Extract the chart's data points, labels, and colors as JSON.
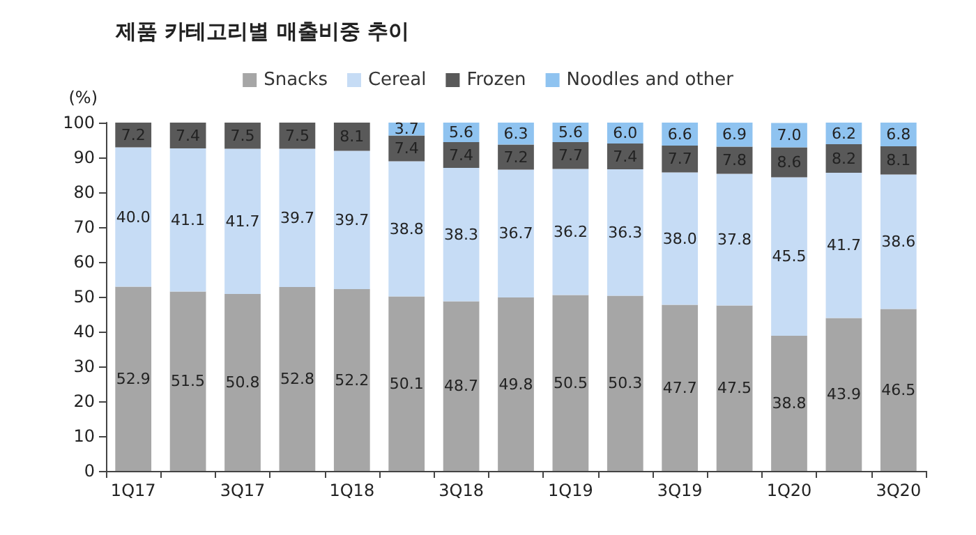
{
  "chart_data": {
    "type": "bar",
    "title": "제품 카테고리별 매출비중 추이",
    "ylabel": "(%)",
    "categories": [
      "1Q17",
      null,
      "3Q17",
      null,
      "1Q18",
      null,
      "3Q18",
      null,
      "1Q19",
      null,
      "3Q19",
      null,
      "1Q20",
      null,
      "3Q20"
    ],
    "series": [
      {
        "name": "Snacks",
        "color": "#a6a6a6",
        "values": [
          52.9,
          51.5,
          50.8,
          52.8,
          52.2,
          50.1,
          48.7,
          49.8,
          50.5,
          50.3,
          47.7,
          47.5,
          38.8,
          43.9,
          46.5
        ],
        "value_labels": [
          "52.9",
          "51.5",
          "50.8",
          "52.8",
          "52.2",
          "50.1",
          "48.7",
          "49.8",
          "50.5",
          "50.3",
          "47.7",
          "47.5",
          "38.8",
          "43.9",
          "46.5"
        ]
      },
      {
        "name": "Cereal",
        "color": "#c6dcf5",
        "values": [
          40.0,
          41.1,
          41.7,
          39.7,
          39.7,
          38.8,
          38.3,
          36.7,
          36.2,
          36.3,
          38.0,
          37.8,
          45.5,
          41.7,
          38.6
        ],
        "value_labels": [
          "40.0",
          "41.1",
          "41.7",
          "39.7",
          "39.7",
          "38.8",
          "38.3",
          "36.7",
          "36.2",
          "36.3",
          "38.0",
          "37.8",
          "45.5",
          "41.7",
          "38.6"
        ]
      },
      {
        "name": "Frozen",
        "color": "#595959",
        "values": [
          7.2,
          7.4,
          7.5,
          7.5,
          8.1,
          7.4,
          7.4,
          7.2,
          7.7,
          7.4,
          7.7,
          7.8,
          8.6,
          8.2,
          8.1
        ],
        "value_labels": [
          "7.2",
          "7.4",
          "7.5",
          "7.5",
          "8.1",
          "7.4",
          "7.4",
          "7.2",
          "7.7",
          "7.4",
          "7.7",
          "7.8",
          "8.6",
          "8.2",
          "8.1"
        ]
      },
      {
        "name": "Noodles and other",
        "color": "#8fc3f0",
        "values": [
          null,
          null,
          null,
          null,
          null,
          3.7,
          5.6,
          6.3,
          5.6,
          6.0,
          6.6,
          6.9,
          7.0,
          6.2,
          6.8
        ],
        "value_labels": [
          null,
          null,
          null,
          null,
          null,
          "3.7",
          "5.6",
          "6.3",
          "5.6",
          "6.0",
          "6.6",
          "6.9",
          "7.0",
          "6.2",
          "6.8"
        ]
      }
    ],
    "stacked": true,
    "ylim": [
      0,
      100
    ],
    "yticks": [
      0,
      10,
      20,
      30,
      40,
      50,
      60,
      70,
      80,
      90,
      100
    ],
    "legend": "top",
    "grid": false
  }
}
